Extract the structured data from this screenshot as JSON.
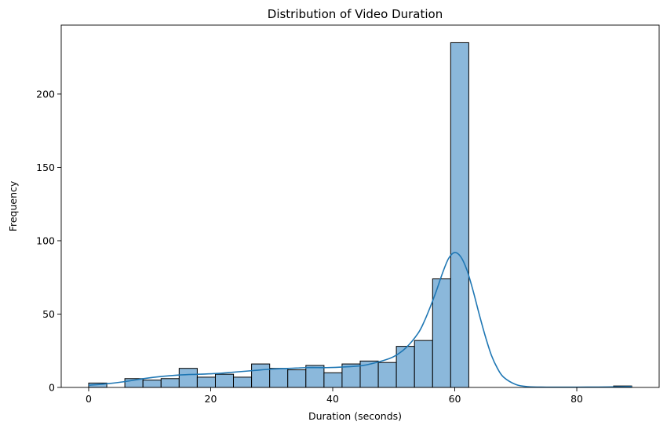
{
  "chart_data": {
    "type": "bar",
    "title": "Distribution of Video Duration",
    "xlabel": "Duration (seconds)",
    "ylabel": "Frequency",
    "xlim": [
      -4.5,
      93.5
    ],
    "ylim": [
      0,
      247
    ],
    "xticks": [
      0,
      20,
      40,
      60,
      80
    ],
    "yticks": [
      0,
      50,
      100,
      150,
      200
    ],
    "bin_width": 2.97,
    "bins": [
      {
        "start": 0.0,
        "count": 3
      },
      {
        "start": 2.97,
        "count": 0
      },
      {
        "start": 5.93,
        "count": 6
      },
      {
        "start": 8.9,
        "count": 5
      },
      {
        "start": 11.87,
        "count": 6
      },
      {
        "start": 14.83,
        "count": 13
      },
      {
        "start": 17.8,
        "count": 7
      },
      {
        "start": 20.77,
        "count": 9
      },
      {
        "start": 23.73,
        "count": 7
      },
      {
        "start": 26.7,
        "count": 16
      },
      {
        "start": 29.67,
        "count": 13
      },
      {
        "start": 32.63,
        "count": 12
      },
      {
        "start": 35.6,
        "count": 15
      },
      {
        "start": 38.57,
        "count": 10
      },
      {
        "start": 41.53,
        "count": 16
      },
      {
        "start": 44.5,
        "count": 18
      },
      {
        "start": 47.47,
        "count": 17
      },
      {
        "start": 50.43,
        "count": 28
      },
      {
        "start": 53.4,
        "count": 32
      },
      {
        "start": 56.37,
        "count": 74
      },
      {
        "start": 59.33,
        "count": 235
      },
      {
        "start": 62.3,
        "count": 0
      },
      {
        "start": 65.27,
        "count": 0
      },
      {
        "start": 68.23,
        "count": 0
      },
      {
        "start": 71.2,
        "count": 0
      },
      {
        "start": 74.17,
        "count": 0
      },
      {
        "start": 77.13,
        "count": 0
      },
      {
        "start": 80.1,
        "count": 0
      },
      {
        "start": 83.07,
        "count": 0
      },
      {
        "start": 86.03,
        "count": 1
      }
    ],
    "kde": {
      "name": "KDE",
      "x": [
        0,
        3,
        6,
        9,
        12,
        15,
        18,
        21,
        24,
        27,
        30,
        33,
        36,
        39,
        42,
        45,
        48,
        50,
        52,
        54,
        55,
        56,
        57,
        58,
        59,
        60,
        61,
        62,
        63,
        64,
        65,
        66,
        67,
        68,
        70,
        72,
        75,
        80,
        85,
        89
      ],
      "y": [
        1.5,
        2.5,
        4,
        6,
        7.5,
        8.5,
        9,
        9.5,
        10.5,
        11.5,
        12.5,
        13,
        13.5,
        13.5,
        14,
        15,
        18,
        21,
        27,
        37,
        45,
        55,
        66,
        78,
        88,
        92,
        89,
        80,
        66,
        50,
        35,
        22,
        13,
        7,
        2,
        0.5,
        0.2,
        0.2,
        0.3,
        0.6
      ]
    },
    "colors": {
      "bar_fill": "#8bb8db",
      "bar_edge": "#000000",
      "kde_line": "#1f77b4"
    },
    "grid": false,
    "legend": false
  }
}
